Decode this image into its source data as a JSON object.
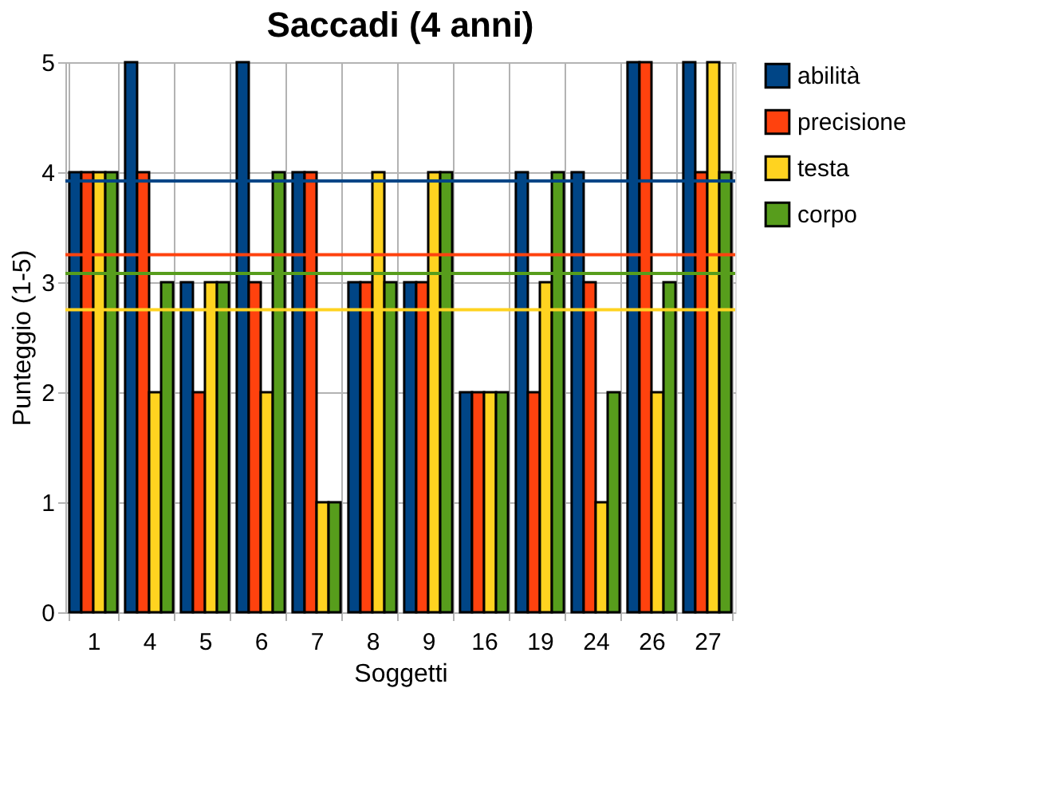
{
  "chart_data": {
    "type": "bar",
    "title": "Saccadi (4 anni)",
    "xlabel": "Soggetti",
    "ylabel": "Punteggio (1-5)",
    "categories": [
      "1",
      "4",
      "5",
      "6",
      "7",
      "8",
      "9",
      "16",
      "19",
      "24",
      "26",
      "27"
    ],
    "series": [
      {
        "name": "abilità",
        "color": "#004586",
        "values": [
          4,
          5,
          3,
          5,
          4,
          3,
          3,
          2,
          4,
          4,
          5,
          5
        ]
      },
      {
        "name": "precisione",
        "color": "#ff420e",
        "values": [
          4,
          4,
          2,
          3,
          4,
          3,
          3,
          2,
          2,
          3,
          5,
          4
        ]
      },
      {
        "name": "testa",
        "color": "#ffd320",
        "values": [
          4,
          2,
          3,
          2,
          1,
          4,
          4,
          2,
          3,
          1,
          2,
          5
        ]
      },
      {
        "name": "corpo",
        "color": "#579d1c",
        "values": [
          4,
          3,
          3,
          4,
          1,
          3,
          4,
          2,
          4,
          2,
          3,
          4
        ]
      }
    ],
    "ylim": [
      0,
      5
    ],
    "yticks": [
      0,
      1,
      2,
      3,
      4,
      5
    ],
    "ref_lines": [
      {
        "axis": "y",
        "value": 3.92,
        "color": "#004586"
      },
      {
        "axis": "y",
        "value": 3.25,
        "color": "#ff420e"
      },
      {
        "axis": "y",
        "value": 2.75,
        "color": "#ffd320"
      },
      {
        "axis": "y",
        "value": 3.08,
        "color": "#579d1c"
      }
    ],
    "grid": true,
    "legend": "right"
  }
}
